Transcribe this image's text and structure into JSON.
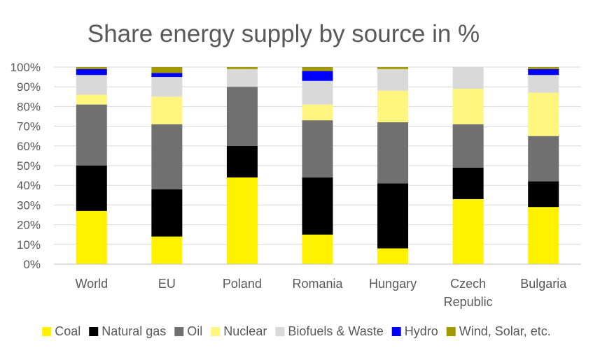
{
  "chart_data": {
    "type": "bar",
    "stacked": true,
    "title": "Share energy supply by source in %",
    "categories": [
      "World",
      "EU",
      "Poland",
      "Romania",
      "Hungary",
      "Czech Republic",
      "Bulgaria"
    ],
    "category_lines": [
      [
        "World"
      ],
      [
        "EU"
      ],
      [
        "Poland"
      ],
      [
        "Romania"
      ],
      [
        "Hungary"
      ],
      [
        "Czech",
        "Republic"
      ],
      [
        "Bulgaria"
      ]
    ],
    "ylim": [
      0,
      100
    ],
    "yticks": [
      0,
      10,
      20,
      30,
      40,
      50,
      60,
      70,
      80,
      90,
      100
    ],
    "ytick_labels": [
      "0%",
      "10%",
      "20%",
      "30%",
      "40%",
      "50%",
      "60%",
      "70%",
      "80%",
      "90%",
      "100%"
    ],
    "grid": true,
    "legend_position": "bottom",
    "series": [
      {
        "name": "Coal",
        "color": "#FFF200",
        "values": [
          27,
          14,
          44,
          15,
          8,
          33,
          29
        ]
      },
      {
        "name": "Natural gas",
        "color": "#000000",
        "values": [
          23,
          24,
          16,
          29,
          33,
          16,
          13
        ]
      },
      {
        "name": "Oil",
        "color": "#707070",
        "values": [
          31,
          33,
          30,
          29,
          31,
          22,
          23
        ]
      },
      {
        "name": "Nuclear",
        "color": "#FFF57F",
        "values": [
          5,
          14,
          0,
          8,
          16,
          18,
          22
        ]
      },
      {
        "name": "Biofuels & Waste",
        "color": "#D9D9D9",
        "values": [
          10,
          10,
          9,
          12,
          11,
          11,
          9
        ]
      },
      {
        "name": "Hydro",
        "color": "#0000FF",
        "values": [
          3,
          2,
          0,
          5,
          0,
          0,
          3
        ]
      },
      {
        "name": "Wind, Solar, etc.",
        "color": "#A09900",
        "values": [
          1,
          3,
          1,
          2,
          1,
          0,
          1
        ]
      }
    ]
  }
}
